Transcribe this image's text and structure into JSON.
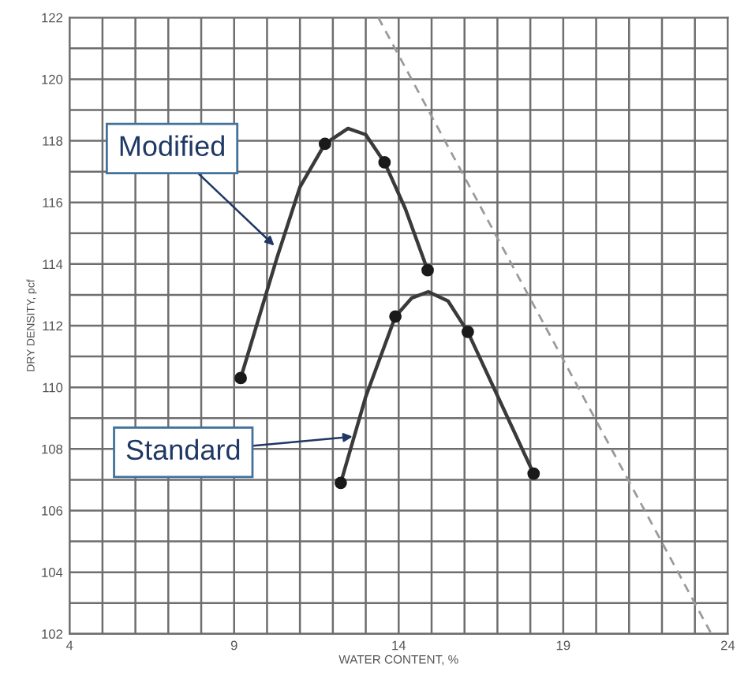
{
  "chart_data": {
    "type": "line",
    "xlabel": "WATER CONTENT, %",
    "ylabel": "DRY DENSITY, pcf",
    "xlim": [
      4,
      24
    ],
    "ylim": [
      102,
      122
    ],
    "xticks": [
      4,
      {
        "value": 5,
        "label": null
      },
      {
        "value": 6,
        "label": null
      },
      {
        "value": 7,
        "label": null
      },
      {
        "value": 8,
        "label": null
      },
      9,
      {
        "value": 10,
        "label": null
      },
      {
        "value": 11,
        "label": null
      },
      {
        "value": 12,
        "label": null
      },
      {
        "value": 13,
        "label": null
      },
      14,
      {
        "value": 15,
        "label": null
      },
      {
        "value": 16,
        "label": null
      },
      {
        "value": 17,
        "label": null
      },
      {
        "value": 18,
        "label": null
      },
      19,
      {
        "value": 20,
        "label": null
      },
      {
        "value": 21,
        "label": null
      },
      {
        "value": 22,
        "label": null
      },
      {
        "value": 23,
        "label": null
      },
      24
    ],
    "yticks": [
      102,
      {
        "value": 103,
        "label": null
      },
      104,
      {
        "value": 105,
        "label": null
      },
      106,
      {
        "value": 107,
        "label": null
      },
      108,
      {
        "value": 109,
        "label": null
      },
      110,
      {
        "value": 111,
        "label": null
      },
      112,
      {
        "value": 113,
        "label": null
      },
      114,
      {
        "value": 115,
        "label": null
      },
      116,
      {
        "value": 117,
        "label": null
      },
      118,
      {
        "value": 119,
        "label": null
      },
      120,
      {
        "value": 121,
        "label": null
      },
      122
    ],
    "grid": true,
    "series": [
      {
        "color": "#3a3a3a",
        "marker": "none",
        "line_style": "solid",
        "x": [
          9.2,
          10.3,
          11.0,
          11.76,
          12.46,
          13.0,
          13.57,
          14.2,
          14.88
        ],
        "values": [
          110.3,
          114.2,
          116.5,
          117.9,
          118.4,
          118.2,
          117.3,
          115.8,
          113.8
        ]
      },
      {
        "type": "scatter",
        "color": "#1a1a1a",
        "marker": "circle",
        "x": [
          9.2,
          11.76,
          13.57,
          14.88
        ],
        "values": [
          110.3,
          117.9,
          117.3,
          113.8
        ]
      },
      {
        "color": "#3a3a3a",
        "marker": "none",
        "line_style": "solid",
        "x": [
          12.24,
          13.0,
          13.9,
          14.4,
          14.9,
          15.5,
          16.1,
          17.1,
          18.1
        ],
        "values": [
          106.9,
          109.7,
          112.3,
          112.9,
          113.1,
          112.8,
          111.8,
          109.5,
          107.2
        ]
      },
      {
        "type": "scatter",
        "color": "#1a1a1a",
        "marker": "circle",
        "x": [
          12.24,
          13.9,
          16.1,
          18.1
        ],
        "values": [
          106.9,
          112.3,
          111.8,
          107.2
        ]
      },
      {
        "color": "#9a9a9a",
        "marker": "none",
        "line_style": "dashed",
        "x": [
          13.38,
          23.5
        ],
        "values": [
          122,
          102
        ]
      }
    ],
    "annotations": [
      {
        "text": "Modified",
        "x": 10.22,
        "y": 114.6
      },
      {
        "text": "Standard",
        "x": 12.6,
        "y": 108.4
      }
    ]
  }
}
